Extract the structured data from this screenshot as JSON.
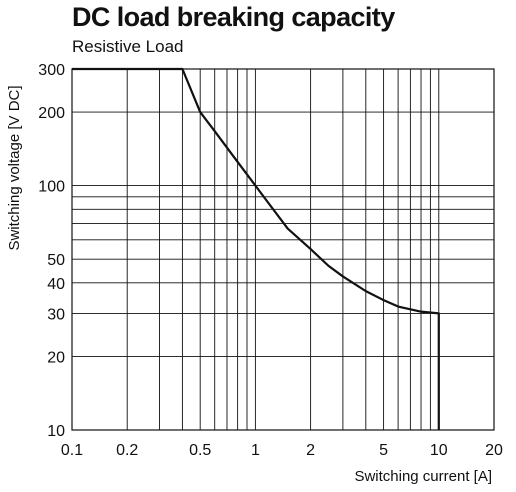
{
  "chart_data": {
    "type": "line",
    "title": "DC load breaking capacity",
    "subtitle": "Resistive Load",
    "xlabel": "Switching current [A]",
    "ylabel": "Switching voltage [V DC]",
    "x_scale": "log",
    "y_scale": "log",
    "xlim": [
      0.1,
      20
    ],
    "ylim": [
      10,
      300
    ],
    "grid": true,
    "x_ticks": [
      {
        "value": 0.1,
        "label": "0.1"
      },
      {
        "value": 0.2,
        "label": "0.2"
      },
      {
        "value": 0.5,
        "label": "0.5"
      },
      {
        "value": 1,
        "label": "1"
      },
      {
        "value": 2,
        "label": "2"
      },
      {
        "value": 5,
        "label": "5"
      },
      {
        "value": 10,
        "label": "10"
      },
      {
        "value": 20,
        "label": "20"
      }
    ],
    "y_ticks": [
      {
        "value": 10,
        "label": "10"
      },
      {
        "value": 20,
        "label": "20"
      },
      {
        "value": 30,
        "label": "30"
      },
      {
        "value": 40,
        "label": "40"
      },
      {
        "value": 50,
        "label": "50"
      },
      {
        "value": 100,
        "label": "100"
      },
      {
        "value": 200,
        "label": "200"
      },
      {
        "value": 300,
        "label": "300"
      }
    ],
    "x_gridlines": [
      0.2,
      0.3,
      0.4,
      0.5,
      0.6,
      0.7,
      0.8,
      0.9,
      1,
      2,
      3,
      4,
      5,
      6,
      7,
      8,
      9,
      10
    ],
    "y_gridlines": [
      20,
      30,
      40,
      50,
      60,
      70,
      80,
      90,
      100,
      200
    ],
    "series": [
      {
        "x": [
          0.1,
          0.333,
          0.4,
          0.5,
          0.6,
          0.8,
          1.0,
          1.2,
          1.5,
          2.0,
          2.5,
          3.0,
          4.0,
          5.0,
          6.0,
          8.0,
          10.0,
          10.0
        ],
        "y": [
          300,
          300,
          300,
          200,
          167,
          125,
          100,
          83.3,
          66.7,
          55,
          47,
          42.5,
          37,
          34,
          32,
          30.5,
          30,
          10
        ]
      }
    ],
    "colors": {
      "line": "#111111",
      "grid": "#111111",
      "background": "#ffffff"
    }
  }
}
